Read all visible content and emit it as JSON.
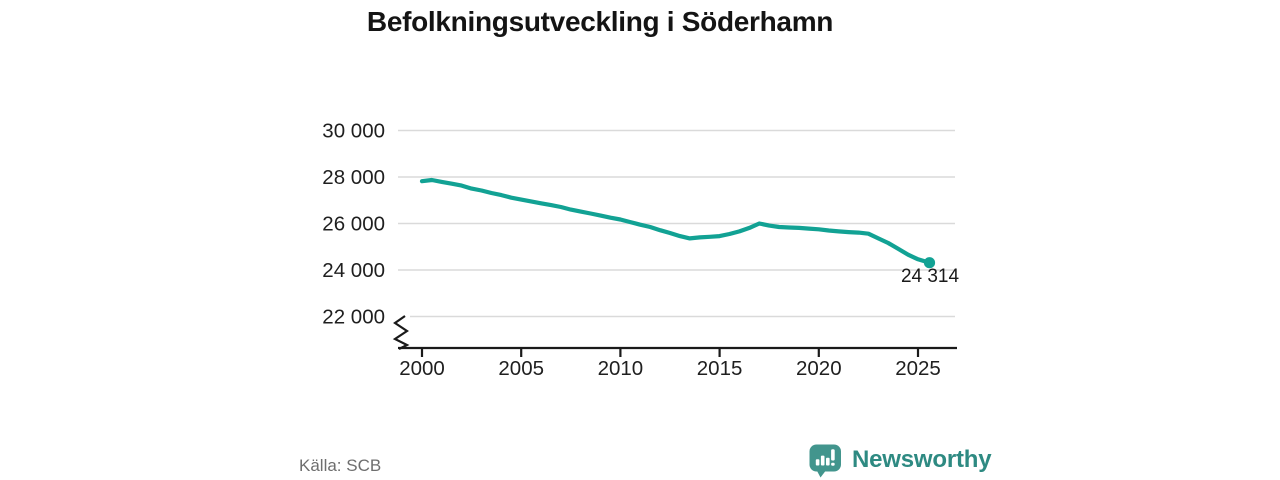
{
  "title": "Befolkningsutveckling i Söderhamn",
  "source": "Källa: SCB",
  "brand": {
    "name": "Newsworthy"
  },
  "colors": {
    "line": "#12a294",
    "grid": "#dadada",
    "axis": "#1a1a1a",
    "tick_label": "#1f1f1f",
    "source_text": "#6e6e6e",
    "logo_bubble": "#42958d",
    "logo_word": "#2e8a82",
    "background": "#ffffff"
  },
  "chart_data": {
    "type": "line",
    "title": "Befolkningsutveckling i Söderhamn",
    "xlabel": "",
    "ylabel": "",
    "x_ticks": [
      2000,
      2005,
      2010,
      2015,
      2020,
      2025
    ],
    "x_tick_labels": [
      "2000",
      "2005",
      "2010",
      "2015",
      "2020",
      "2025"
    ],
    "y_ticks": [
      22000,
      24000,
      26000,
      28000,
      30000
    ],
    "y_tick_labels": [
      "22 000",
      "24 000",
      "26 000",
      "28 000",
      "30 000"
    ],
    "xlim": [
      1998.8,
      2027
    ],
    "ylim": [
      21500,
      30500
    ],
    "axis_break": true,
    "grid": "horizontal",
    "legend": "none",
    "end_label": "24 314",
    "end_value": 24314,
    "series": [
      {
        "name": "Befolkning",
        "points": [
          [
            2000.0,
            27820
          ],
          [
            2000.5,
            27870
          ],
          [
            2001.0,
            27790
          ],
          [
            2001.5,
            27710
          ],
          [
            2002.0,
            27630
          ],
          [
            2002.5,
            27500
          ],
          [
            2003.0,
            27420
          ],
          [
            2003.5,
            27310
          ],
          [
            2004.0,
            27220
          ],
          [
            2004.5,
            27110
          ],
          [
            2005.0,
            27030
          ],
          [
            2005.5,
            26950
          ],
          [
            2006.0,
            26870
          ],
          [
            2006.5,
            26790
          ],
          [
            2007.0,
            26710
          ],
          [
            2007.5,
            26600
          ],
          [
            2008.0,
            26510
          ],
          [
            2008.5,
            26430
          ],
          [
            2009.0,
            26340
          ],
          [
            2009.5,
            26250
          ],
          [
            2010.0,
            26170
          ],
          [
            2010.5,
            26060
          ],
          [
            2011.0,
            25950
          ],
          [
            2011.5,
            25850
          ],
          [
            2012.0,
            25710
          ],
          [
            2012.5,
            25590
          ],
          [
            2013.0,
            25460
          ],
          [
            2013.5,
            25360
          ],
          [
            2014.0,
            25400
          ],
          [
            2014.5,
            25430
          ],
          [
            2015.0,
            25460
          ],
          [
            2015.5,
            25550
          ],
          [
            2016.0,
            25660
          ],
          [
            2016.5,
            25810
          ],
          [
            2017.0,
            26000
          ],
          [
            2017.5,
            25910
          ],
          [
            2018.0,
            25850
          ],
          [
            2018.5,
            25830
          ],
          [
            2019.0,
            25810
          ],
          [
            2019.5,
            25780
          ],
          [
            2020.0,
            25750
          ],
          [
            2020.5,
            25700
          ],
          [
            2021.0,
            25660
          ],
          [
            2021.5,
            25630
          ],
          [
            2022.0,
            25610
          ],
          [
            2022.5,
            25560
          ],
          [
            2023.0,
            25360
          ],
          [
            2023.5,
            25160
          ],
          [
            2024.0,
            24910
          ],
          [
            2024.5,
            24660
          ],
          [
            2025.0,
            24460
          ],
          [
            2025.5,
            24330
          ],
          [
            2025.58,
            24314
          ]
        ]
      }
    ]
  }
}
